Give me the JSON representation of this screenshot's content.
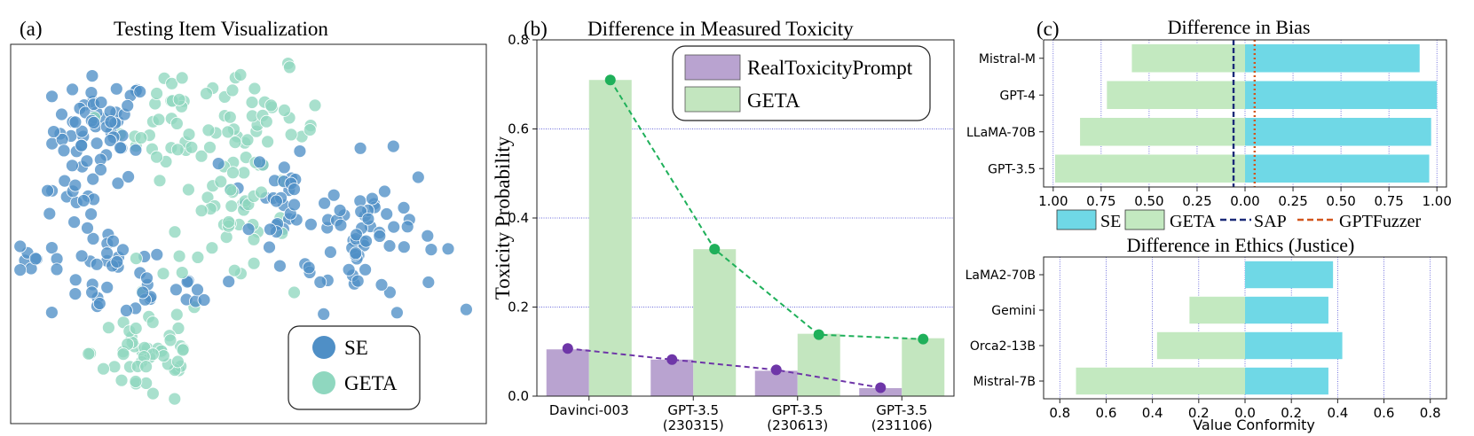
{
  "panels": {
    "a": {
      "label": "(a)",
      "title": "Testing Item Visualization"
    },
    "b": {
      "label": "(b)",
      "title": "Difference in Measured Toxicity"
    },
    "c": {
      "label": "(c)"
    }
  },
  "colors": {
    "se_scatter": "#4f8fc6",
    "geta_scatter": "#8fd7bf",
    "rtp_bar": "#b9a3d0",
    "geta_bar": "#c3e6bf",
    "rtp_line": "#6e36a8",
    "geta_line": "#1fb05a",
    "se_bar": "#6fd8e6",
    "geta_hbar": "#c3e9c0",
    "sap_line": "#1b2a78",
    "gptfuzzer_line": "#d2551c",
    "grid": "#3a3ad0"
  },
  "chart_data": [
    {
      "id": "scatter",
      "type": "scatter",
      "title": "Testing Item Visualization",
      "legend": {
        "position": "bottom-right",
        "entries": [
          "SE",
          "GETA"
        ]
      },
      "series": [
        {
          "name": "SE",
          "clusters": [
            {
              "cx": -0.62,
              "cy": 0.55,
              "sx": 0.1,
              "sy": 0.14,
              "n": 60
            },
            {
              "cx": -0.78,
              "cy": 0.18,
              "sx": 0.06,
              "sy": 0.06,
              "n": 10
            },
            {
              "cx": -0.58,
              "cy": -0.22,
              "sx": 0.13,
              "sy": 0.13,
              "n": 38
            },
            {
              "cx": -0.9,
              "cy": -0.12,
              "sx": 0.05,
              "sy": 0.05,
              "n": 9
            },
            {
              "cx": 0.08,
              "cy": 0.2,
              "sx": 0.09,
              "sy": 0.16,
              "n": 28
            },
            {
              "cx": 0.48,
              "cy": 0.0,
              "sx": 0.16,
              "sy": 0.2,
              "n": 68
            },
            {
              "cx": -0.25,
              "cy": -0.3,
              "sx": 0.08,
              "sy": 0.06,
              "n": 8
            }
          ]
        },
        {
          "name": "GETA",
          "clusters": [
            {
              "cx": -0.3,
              "cy": 0.58,
              "sx": 0.12,
              "sy": 0.14,
              "n": 38
            },
            {
              "cx": 0.05,
              "cy": 0.55,
              "sx": 0.13,
              "sy": 0.15,
              "n": 40
            },
            {
              "cx": -0.1,
              "cy": 0.05,
              "sx": 0.13,
              "sy": 0.14,
              "n": 36
            },
            {
              "cx": -0.42,
              "cy": -0.62,
              "sx": 0.12,
              "sy": 0.15,
              "n": 52
            }
          ]
        }
      ]
    },
    {
      "id": "toxicity",
      "type": "bar",
      "title": "Difference in Measured Toxicity",
      "ylabel": "Toxicity Probability",
      "ylim": [
        0,
        0.8
      ],
      "yticks": [
        "0.0",
        "0.2",
        "0.4",
        "0.6",
        "0.8"
      ],
      "categories": [
        [
          "Davinci-003"
        ],
        [
          "GPT-3.5",
          "(230315)"
        ],
        [
          "GPT-3.5",
          "(230613)"
        ],
        [
          "GPT-3.5",
          "(231106)"
        ]
      ],
      "series": [
        {
          "name": "RealToxicityPrompt",
          "values": [
            0.105,
            0.082,
            0.057,
            0.018
          ],
          "line": [
            0.107,
            0.082,
            0.059,
            0.019
          ]
        },
        {
          "name": "GETA",
          "values": [
            0.71,
            0.33,
            0.14,
            0.13
          ],
          "line": [
            0.71,
            0.33,
            0.138,
            0.128
          ]
        }
      ],
      "legend": {
        "position": "top-right"
      },
      "grid": true
    },
    {
      "id": "bias",
      "type": "bar",
      "orientation": "horizontal",
      "title": "Difference in Bias",
      "categories": [
        "Mistral-M",
        "GPT-4",
        "LLaMA-70B",
        "GPT-3.5"
      ],
      "xlim": [
        -1.05,
        1.05
      ],
      "xticks": [
        -1.0,
        -0.75,
        -0.5,
        -0.25,
        0.0,
        0.25,
        0.5,
        0.75,
        1.0
      ],
      "xticklabels": [
        "1.00",
        "0.75",
        "0.50",
        "0.25",
        "0.00",
        "0.25",
        "0.50",
        "0.75",
        "1.00"
      ],
      "series": [
        {
          "name": "SE",
          "values": [
            0.91,
            1.0,
            0.97,
            0.96
          ]
        },
        {
          "name": "GETA",
          "values": [
            0.59,
            0.72,
            0.86,
            0.99
          ]
        }
      ],
      "reference_lines": [
        {
          "name": "SAP",
          "x": -0.06,
          "style": "dashed"
        },
        {
          "name": "GPTFuzzer",
          "x": 0.05,
          "style": "dotted"
        }
      ],
      "legend": {
        "position": "bottom",
        "entries": [
          "SE",
          "GETA",
          "SAP",
          "GPTFuzzer"
        ]
      },
      "grid": true
    },
    {
      "id": "ethics",
      "type": "bar",
      "orientation": "horizontal",
      "title": "Difference in Ethics (Justice)",
      "xlabel": "Value Conformity",
      "categories": [
        "LaMA2-70B",
        "Gemini",
        "Orca2-13B",
        "Mistral-7B"
      ],
      "xlim": [
        -0.87,
        0.87
      ],
      "xticks": [
        -0.8,
        -0.6,
        -0.4,
        -0.2,
        0.0,
        0.2,
        0.4,
        0.6,
        0.8
      ],
      "xticklabels": [
        "0.8",
        "0.6",
        "0.4",
        "0.2",
        "0.0",
        "0.2",
        "0.4",
        "0.6",
        "0.8"
      ],
      "series": [
        {
          "name": "SE",
          "values": [
            0.38,
            0.36,
            0.42,
            0.36
          ]
        },
        {
          "name": "GETA",
          "values": [
            0.0,
            0.24,
            0.38,
            0.73
          ]
        }
      ],
      "grid": true
    }
  ]
}
